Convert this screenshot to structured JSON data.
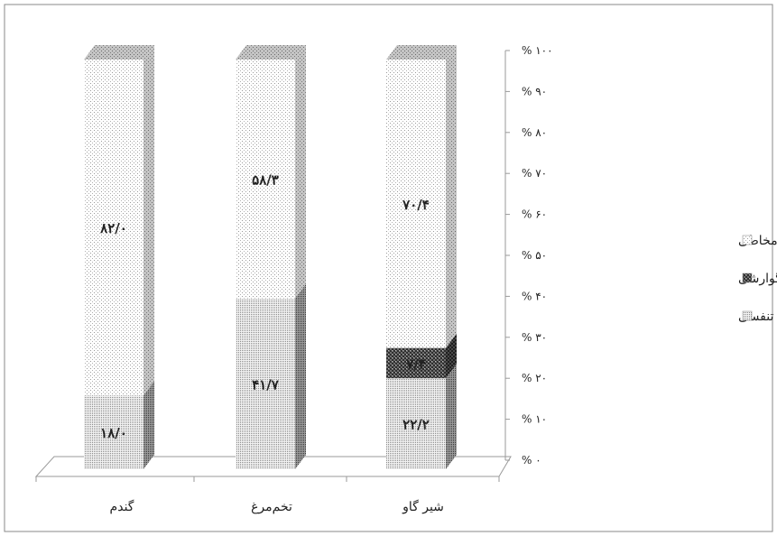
{
  "chart_data": {
    "type": "bar",
    "stacked": true,
    "percent": true,
    "categories": [
      "گندم",
      "تخم‌مرغ",
      "شیر گاو"
    ],
    "series": [
      {
        "name": "علائم تنفسی",
        "values": [
          18.0,
          41.7,
          22.2
        ],
        "labels": [
          "۱۸/۰",
          "۴۱/۷",
          "۲۲/۲"
        ],
        "pattern": "dense-dots"
      },
      {
        "name": "علائم گوارشی",
        "values": [
          0,
          0,
          7.4
        ],
        "labels": [
          "",
          "",
          "۷/۴"
        ],
        "pattern": "checker"
      },
      {
        "name": "علائم پوستی-مخاطی",
        "values": [
          82.0,
          58.3,
          70.4
        ],
        "labels": [
          "۸۲/۰",
          "۵۸/۳",
          "۷۰/۴"
        ],
        "pattern": "sparse-dots"
      }
    ],
    "y_ticks": [
      "% ۰",
      "% ۱۰",
      "% ۲۰",
      "% ۳۰",
      "% ۴۰",
      "% ۵۰",
      "% ۶۰",
      "% ۷۰",
      "% ۸۰",
      "% ۹۰",
      "% ۱۰۰"
    ],
    "ylim": [
      0,
      100
    ],
    "legend_position": "right",
    "grid": false,
    "title": "",
    "xlabel": "",
    "ylabel": ""
  }
}
